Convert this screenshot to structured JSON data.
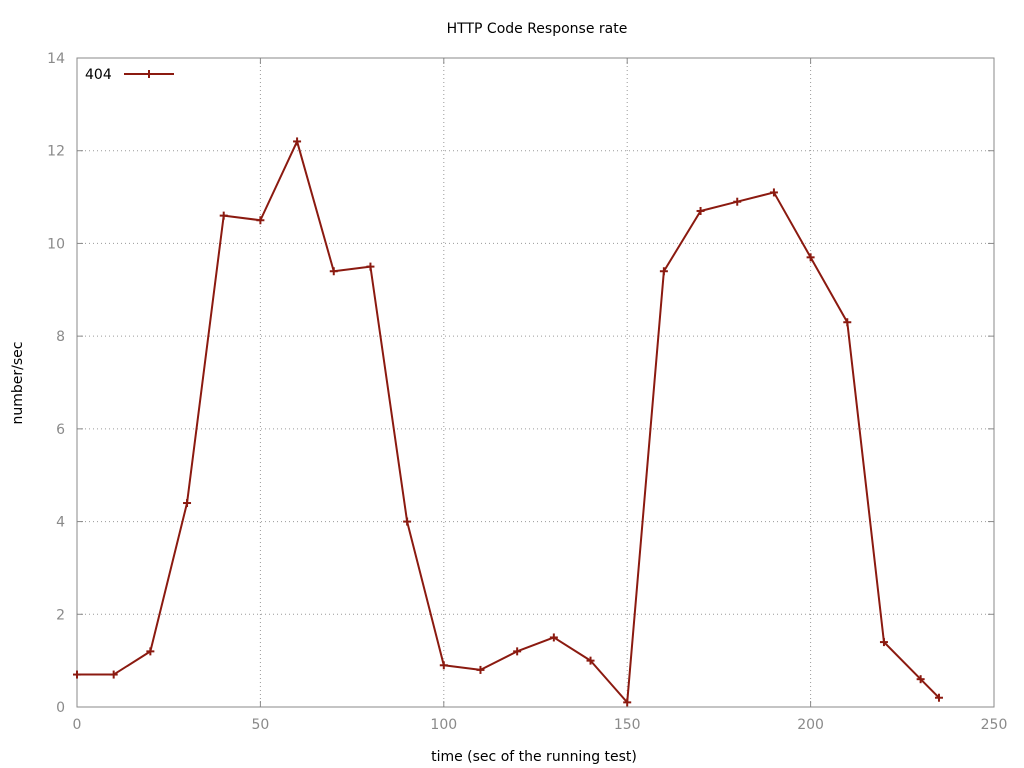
{
  "chart_data": {
    "type": "line",
    "title": "HTTP Code Response rate",
    "xlabel": "time (sec of the running test)",
    "ylabel": "number/sec",
    "xlim": [
      0,
      250
    ],
    "ylim": [
      0,
      14
    ],
    "xticks": [
      0,
      50,
      100,
      150,
      200,
      250
    ],
    "yticks": [
      0,
      2,
      4,
      6,
      8,
      10,
      12,
      14
    ],
    "grid": true,
    "legend_position": "top-left",
    "series": [
      {
        "name": "404",
        "color": "#8b1a10",
        "marker": "plus",
        "x": [
          0,
          10,
          20,
          30,
          40,
          50,
          60,
          70,
          80,
          90,
          100,
          110,
          120,
          130,
          140,
          150,
          160,
          170,
          180,
          190,
          200,
          210,
          220,
          230,
          235
        ],
        "y": [
          0.7,
          0.7,
          1.2,
          4.4,
          10.6,
          10.5,
          12.2,
          9.4,
          9.5,
          4.0,
          0.9,
          0.8,
          1.2,
          1.5,
          1.0,
          0.1,
          9.4,
          10.7,
          10.9,
          11.1,
          9.7,
          8.3,
          1.4,
          0.6,
          0.2
        ]
      }
    ]
  }
}
